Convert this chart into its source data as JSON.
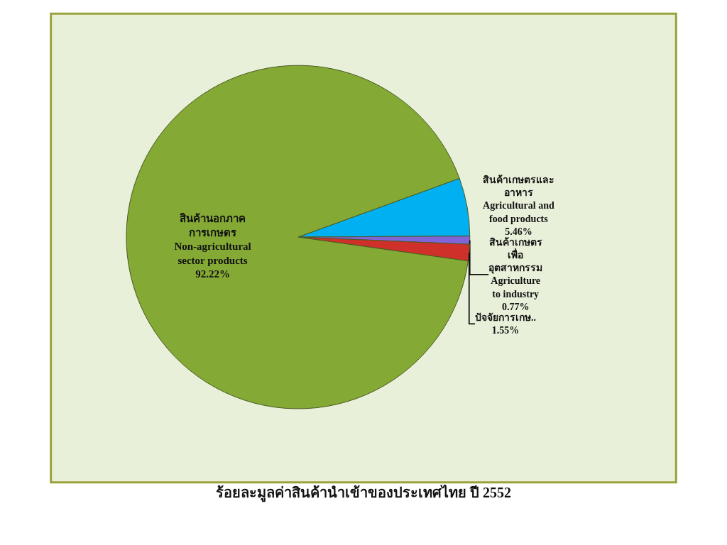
{
  "chart_data": {
    "type": "pie",
    "title": "ร้อยละมูลค่าสินค้านำเข้าของประเทศไทย ปี 2552",
    "categories": [
      "สินค้าเกษตรและ\nอาหาร\nAgricultural and\nfood products",
      "สินค้าเกษตร\nเพื่อ\nอุตสาหกรรม\nAgriculture\nto industry",
      "ปัจจัยการเกษ..",
      "สินค้านอกภาค\nการเกษตร\nNon-agricultural\nsector products"
    ],
    "values": [
      5.46,
      0.77,
      1.55,
      92.22
    ],
    "colors": [
      "#00b0f0",
      "#8064d8",
      "#d0302a",
      "#84a935"
    ],
    "value_labels": [
      "5.46%",
      "0.77%",
      "1.55%",
      "92.22%"
    ],
    "legend": false
  }
}
